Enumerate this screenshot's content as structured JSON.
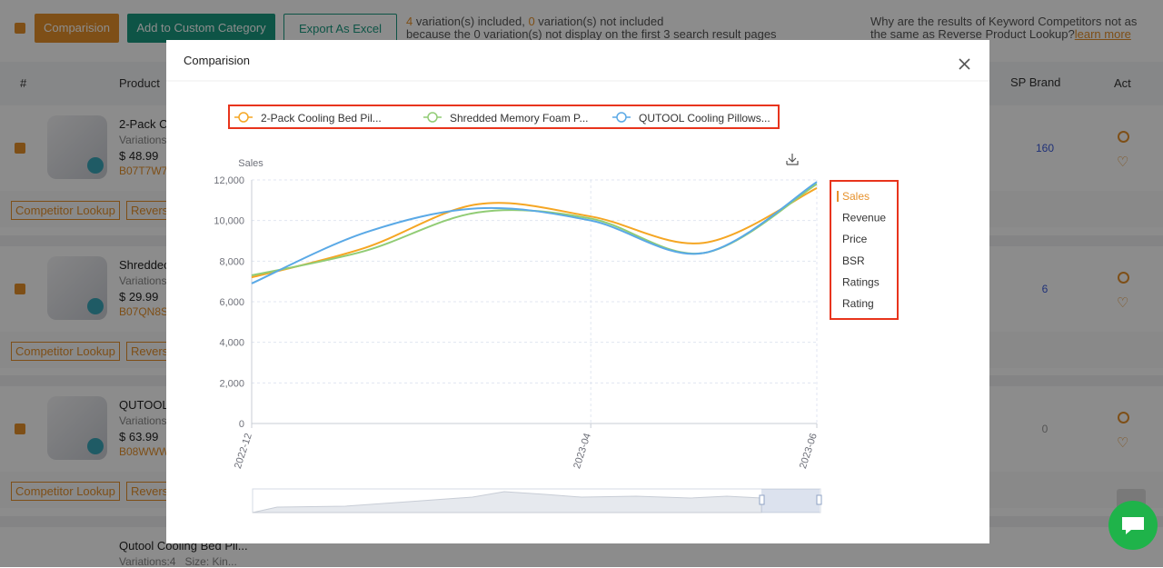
{
  "toolbar": {
    "buttons": [
      "Comparision",
      "Add to Custom Category",
      "Export As Excel"
    ],
    "included_count": "4",
    "included_text": "variation(s) included,",
    "not_included_count": "0",
    "not_included_text": "variation(s) not included",
    "note": "because the 0 variation(s) not display on the first 3 search result pages",
    "question": "Why are the results of Keyword Competitors not as the same as Reverse Product Lookup?",
    "learn_more": "learn more"
  },
  "table": {
    "headers": [
      "#",
      "Product",
      "SP Brand",
      "Act"
    ],
    "rows": [
      {
        "title": "2-Pack C",
        "variations": "Variations",
        "price": "$ 48.99",
        "asin": "B07T7W7",
        "sp_brand": "160",
        "actions": [
          "Competitor Lookup",
          "Reverse"
        ]
      },
      {
        "title": "Shreddec",
        "variations": "Variations",
        "price": "$ 29.99",
        "asin": "B07QN8S",
        "sp_brand": "6",
        "actions": [
          "Competitor Lookup",
          "Reverse"
        ]
      },
      {
        "title": "QUTOOL",
        "variations": "Variations",
        "price": "$ 63.99",
        "asin": "B08WWW",
        "sp_brand": "0",
        "actions": [
          "Competitor Lookup",
          "Reverse"
        ]
      },
      {
        "title": "Qutool Cooling Bed Pil...",
        "variations": "Variations:4   Size: Kin..."
      }
    ]
  },
  "modal": {
    "title": "Comparision",
    "metrics": [
      "Sales",
      "Revenue",
      "Price",
      "BSR",
      "Ratings",
      "Rating"
    ]
  },
  "chart_data": {
    "type": "line",
    "y_label": "Sales",
    "categories": [
      "2022-12",
      null,
      null,
      "2023-04",
      null,
      "2023-06"
    ],
    "series": [
      {
        "name": "2-Pack Cooling Bed Pil...",
        "color": "#f5a623",
        "values": [
          7200,
          8650,
          10800,
          10200,
          8900,
          11600
        ]
      },
      {
        "name": "Shredded Memory Foam P...",
        "color": "#91cc75",
        "values": [
          7300,
          8500,
          10400,
          10100,
          8400,
          11800
        ]
      },
      {
        "name": "QUTOOL Cooling Pillows...",
        "color": "#5aa9e6",
        "values": [
          6900,
          9400,
          10600,
          10000,
          8400,
          11900
        ]
      }
    ],
    "ylim": [
      0,
      12000
    ],
    "yticks": [
      0,
      {
        "value": 2000,
        "label": "2,000"
      },
      {
        "value": 4000,
        "label": "4,000"
      },
      {
        "value": 6000,
        "label": "6,000"
      },
      {
        "value": 8000,
        "label": "8,000"
      },
      {
        "value": 10000,
        "label": "10,000"
      },
      {
        "value": 12000,
        "label": "12,000"
      }
    ],
    "grid": true
  }
}
